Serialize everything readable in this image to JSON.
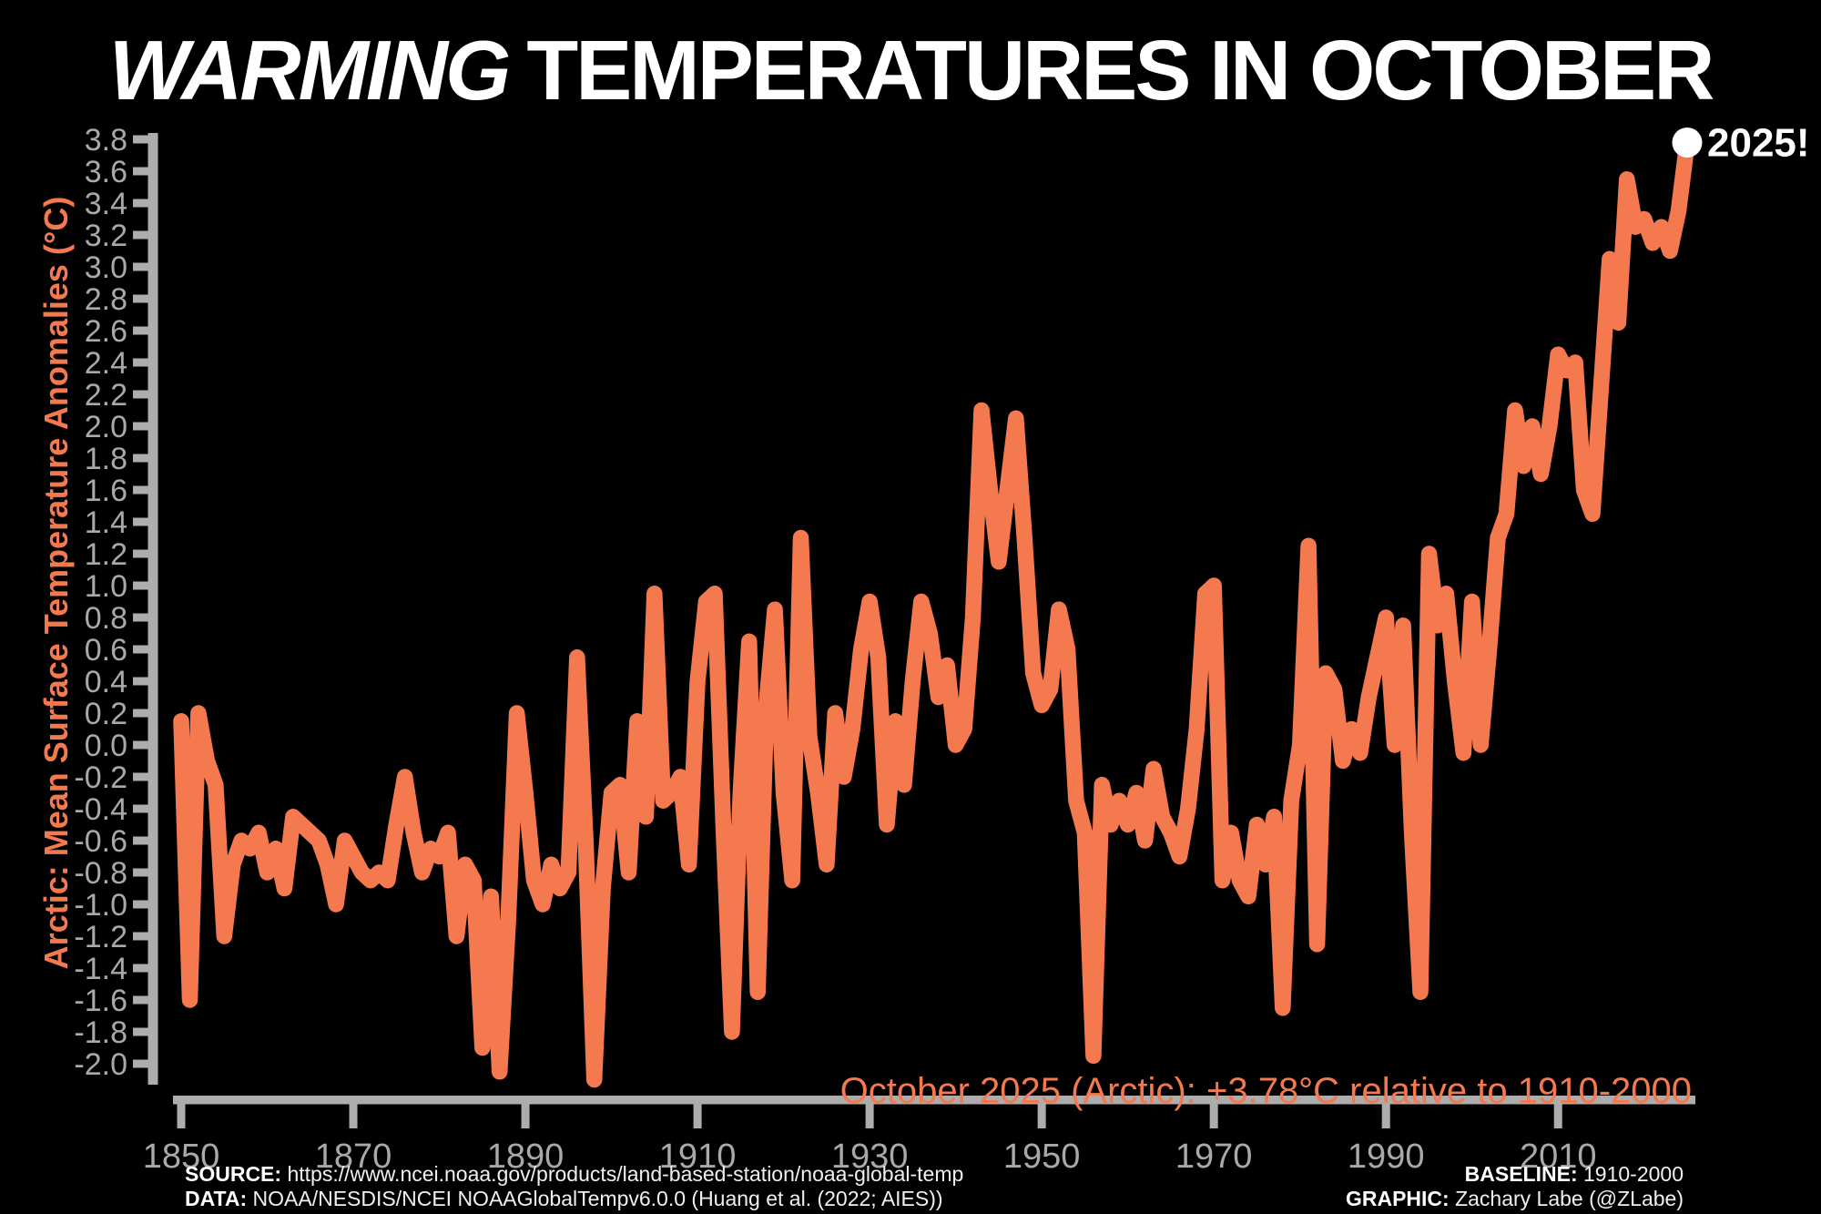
{
  "title": {
    "emph": "WARMING",
    "rest": "TEMPERATURES IN OCTOBER"
  },
  "annotation": "October 2025 (Arctic): +3.78°C relative to 1910-2000",
  "endpoint_label": "2025!",
  "endpoint_value": "+3.78",
  "colors": {
    "background": "#000000",
    "line": "#F4794E",
    "axis": "#ADADAD",
    "tick_label": "#A9A9A9",
    "title": "#FFFFFF",
    "annotation": "#F4794E",
    "ylabel": "#F4794E",
    "endpoint_marker": "#FFFFFF"
  },
  "footer": {
    "source_label": "SOURCE:",
    "source_value": "https://www.ncei.noaa.gov/products/land-based-station/noaa-global-temp",
    "data_label": "DATA:",
    "data_value": "NOAA/NESDIS/NCEI NOAAGlobalTempv6.0.0 (Huang et al. (2022; AIES))",
    "baseline_label": "BASELINE:",
    "baseline_value": "1910-2000",
    "graphic_label": "GRAPHIC:",
    "graphic_value": "Zachary Labe (@ZLabe)"
  },
  "chart_data": {
    "type": "line",
    "title": "WARMING TEMPERATURES IN OCTOBER",
    "xlabel": "",
    "ylabel": "Arctic: Mean Surface Temperature Anomalies (°C)",
    "xlim": [
      1850,
      2025
    ],
    "ylim": [
      -2.1,
      3.8
    ],
    "grid": false,
    "legend": "none",
    "baseline_period": "1910-2000",
    "x_ticks": [
      1850,
      1870,
      1890,
      1910,
      1930,
      1950,
      1970,
      1990,
      2010
    ],
    "y_ticks": [
      3.8,
      3.6,
      3.4,
      3.2,
      3.0,
      2.8,
      2.6,
      2.4,
      2.2,
      2.0,
      1.8,
      1.6,
      1.4,
      1.2,
      1.0,
      0.8,
      0.6,
      0.4,
      0.2,
      0.0,
      -0.2,
      -0.4,
      -0.6,
      -0.8,
      -1.0,
      -1.2,
      -1.4,
      -1.6,
      -1.8,
      -2.0
    ],
    "series": [
      {
        "name": "Arctic October mean surface temperature anomaly (°C, relative to 1910-2000)",
        "start_year": 1850,
        "end_year": 2025,
        "values": [
          0.15,
          -1.6,
          0.2,
          -0.1,
          -0.25,
          -1.2,
          -0.75,
          -0.6,
          -0.65,
          -0.55,
          -0.8,
          -0.65,
          -0.9,
          -0.45,
          -0.5,
          -0.55,
          -0.6,
          -0.75,
          -1.0,
          -0.6,
          -0.7,
          -0.8,
          -0.85,
          -0.8,
          -0.85,
          -0.5,
          -0.2,
          -0.55,
          -0.8,
          -0.65,
          -0.7,
          -0.55,
          -1.2,
          -0.75,
          -0.85,
          -1.9,
          -0.95,
          -2.05,
          -1.1,
          0.2,
          -0.3,
          -0.85,
          -1.0,
          -0.75,
          -0.9,
          -0.8,
          0.55,
          -0.6,
          -2.1,
          -0.9,
          -0.3,
          -0.25,
          -0.8,
          0.15,
          -0.45,
          0.95,
          -0.35,
          -0.3,
          -0.2,
          -0.75,
          0.4,
          0.9,
          0.95,
          -0.5,
          -1.8,
          -0.3,
          0.65,
          -1.55,
          0.25,
          0.85,
          -0.3,
          -0.85,
          1.3,
          0.05,
          -0.3,
          -0.75,
          0.2,
          -0.2,
          0.1,
          0.6,
          0.9,
          0.55,
          -0.5,
          0.15,
          -0.25,
          0.4,
          0.9,
          0.7,
          0.3,
          0.5,
          0.0,
          0.1,
          0.8,
          2.1,
          1.6,
          1.15,
          1.6,
          2.05,
          1.3,
          0.45,
          0.25,
          0.35,
          0.85,
          0.6,
          -0.35,
          -0.55,
          -1.95,
          -0.25,
          -0.5,
          -0.35,
          -0.5,
          -0.3,
          -0.6,
          -0.15,
          -0.45,
          -0.55,
          -0.7,
          -0.4,
          0.1,
          0.95,
          1.0,
          -0.85,
          -0.55,
          -0.85,
          -0.95,
          -0.5,
          -0.75,
          -0.45,
          -1.65,
          -0.35,
          0.0,
          1.25,
          -1.25,
          0.45,
          0.35,
          -0.1,
          0.1,
          -0.05,
          0.3,
          0.55,
          0.8,
          0.0,
          0.75,
          -0.55,
          -1.55,
          1.2,
          0.75,
          0.95,
          0.4,
          -0.05,
          0.9,
          0.0,
          0.6,
          1.3,
          1.45,
          2.1,
          1.75,
          2.0,
          1.7,
          2.0,
          2.45,
          2.35,
          2.4,
          1.6,
          1.45,
          2.25,
          3.05,
          2.65,
          3.55,
          3.25,
          3.3,
          3.15,
          3.25,
          3.1,
          3.35,
          3.78
        ]
      }
    ]
  }
}
